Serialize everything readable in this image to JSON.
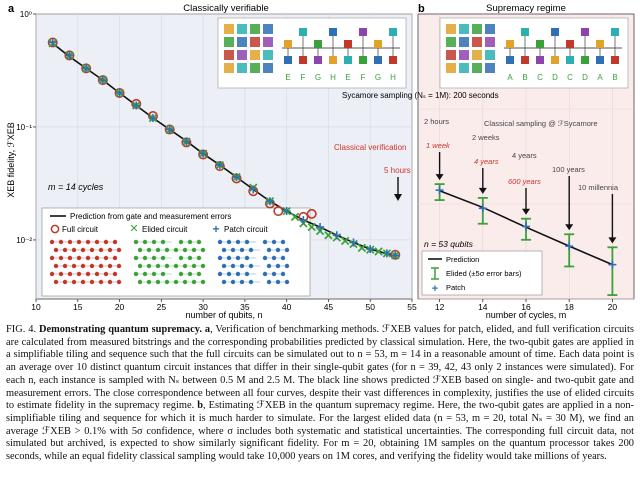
{
  "figure": {
    "panel_a": {
      "letter": "a",
      "title": "Classically verifiable",
      "m_label": "m = 14 cycles",
      "annotation_verification": "Classical verification",
      "annotation_5h": "5 hours",
      "qubit_labels": [
        "E",
        "F",
        "G",
        "H",
        "E",
        "F",
        "G",
        "H"
      ],
      "legend": {
        "prediction": "Prediction from gate and measurement errors",
        "full": "Full circuit",
        "elided": "Elided circuit",
        "patch": "Patch circuit"
      }
    },
    "panel_b": {
      "letter": "b",
      "title": "Supremacy regime",
      "sycamore_note": "Sycamore sampling (Nₛ = 1M): 200 seconds",
      "classical_sampling": "Classical sampling @ ℱSycamore",
      "n_label": "n = 53 qubits",
      "qubit_labels": [
        "A",
        "B",
        "C",
        "D",
        "C",
        "D",
        "A",
        "B"
      ],
      "time_labels": [
        "2 hours",
        "1 week",
        "2 weeks",
        "4 years",
        "4 years",
        "600 years",
        "100 years",
        "10 millennia"
      ],
      "legend": {
        "prediction": "Prediction",
        "elided": "Elided (±5σ error bars)",
        "patch": "Patch"
      }
    },
    "colors": {
      "panel_a_bg": "#eceff6",
      "panel_b_bg": "#fbecec",
      "full": "#c0392b",
      "elided": "#3aa13a",
      "patch": "#2f6fb3",
      "annotation_red": "#d0332b"
    }
  },
  "chart_data": [
    {
      "type": "scatter",
      "title": "Classically verifiable",
      "xlabel": "number of qubits, n",
      "ylabel": "XEB fidelity, ℱXEB",
      "xlim": [
        10,
        55
      ],
      "ylim": [
        0.003,
        1
      ],
      "yscale": "log",
      "x_ticks": [
        10,
        15,
        20,
        25,
        30,
        35,
        40,
        45,
        50,
        55
      ],
      "y_ticks_labels": [
        "10⁻²",
        "10⁻¹",
        "10⁰"
      ],
      "series": [
        {
          "name": "Prediction from gate and measurement errors",
          "kind": "line",
          "x": [
            12,
            14,
            16,
            18,
            20,
            22,
            24,
            26,
            28,
            30,
            32,
            34,
            36,
            38,
            40,
            42,
            44,
            46,
            48,
            50,
            53
          ],
          "y": [
            0.55,
            0.42,
            0.33,
            0.26,
            0.2,
            0.155,
            0.12,
            0.095,
            0.075,
            0.058,
            0.046,
            0.036,
            0.028,
            0.022,
            0.018,
            0.015,
            0.013,
            0.011,
            0.0095,
            0.0083,
            0.0072
          ]
        },
        {
          "name": "Full circuit",
          "x": [
            12,
            14,
            16,
            18,
            20,
            22,
            24,
            26,
            28,
            30,
            32,
            34,
            36,
            38,
            39,
            42,
            43,
            53
          ],
          "y": [
            0.56,
            0.43,
            0.33,
            0.26,
            0.2,
            0.16,
            0.125,
            0.095,
            0.073,
            0.057,
            0.045,
            0.035,
            0.027,
            0.021,
            0.018,
            0.016,
            0.017,
            0.0074
          ]
        },
        {
          "name": "Elided circuit",
          "x": [
            12,
            14,
            16,
            18,
            20,
            22,
            24,
            26,
            28,
            30,
            32,
            34,
            36,
            38,
            40,
            41,
            42,
            43,
            44,
            45,
            46,
            47,
            48,
            49,
            50,
            51,
            52,
            53
          ],
          "y": [
            0.55,
            0.43,
            0.33,
            0.26,
            0.2,
            0.155,
            0.12,
            0.094,
            0.074,
            0.058,
            0.046,
            0.036,
            0.029,
            0.022,
            0.018,
            0.016,
            0.014,
            0.013,
            0.012,
            0.011,
            0.0105,
            0.0098,
            0.0092,
            0.0085,
            0.0082,
            0.0079,
            0.0076,
            0.0073
          ]
        },
        {
          "name": "Patch circuit",
          "x": [
            12,
            14,
            16,
            18,
            20,
            22,
            24,
            26,
            28,
            30,
            32,
            34,
            36,
            38,
            40,
            42,
            44,
            46,
            48,
            50,
            52,
            53
          ],
          "y": [
            0.56,
            0.43,
            0.33,
            0.26,
            0.2,
            0.155,
            0.12,
            0.095,
            0.074,
            0.058,
            0.046,
            0.036,
            0.028,
            0.022,
            0.018,
            0.015,
            0.013,
            0.011,
            0.0095,
            0.0083,
            0.0076,
            0.0073
          ]
        }
      ]
    },
    {
      "type": "scatter",
      "title": "Supremacy regime",
      "xlabel": "number of cycles, m",
      "xlim": [
        11,
        21
      ],
      "ylim": [
        0.001,
        1
      ],
      "yscale": "log",
      "x_ticks": [
        12,
        14,
        16,
        18,
        20
      ],
      "series": [
        {
          "name": "Prediction",
          "kind": "line",
          "x": [
            12,
            14,
            16,
            18,
            20
          ],
          "y": [
            0.0138,
            0.0092,
            0.0057,
            0.0036,
            0.0023
          ]
        },
        {
          "name": "Elided (±5σ error bars)",
          "x": [
            12,
            14,
            16,
            18,
            20
          ],
          "y": [
            0.0135,
            0.0088,
            0.0056,
            0.0035,
            0.0023
          ],
          "err_low": [
            0.011,
            0.0062,
            0.0042,
            0.0022,
            0.0011
          ],
          "err_high": [
            0.0162,
            0.0116,
            0.007,
            0.0048,
            0.0035
          ]
        },
        {
          "name": "Patch",
          "x": [
            12,
            14,
            16,
            18,
            20
          ],
          "y": [
            0.014,
            0.009,
            0.0058,
            0.0036,
            0.0023
          ]
        }
      ]
    }
  ],
  "caption": {
    "lead": "FIG. 4.",
    "bold": "Demonstrating quantum supremacy.",
    "a_label": "a",
    "a_text": ", Verification of benchmarking methods. ℱXEB values for patch, elided, and full verification circuits are calculated from measured bitstrings and the corresponding probabilities predicted by classical simulation. Here, the two-qubit gates are applied in a simplifiable tiling and sequence such that the full circuits can be simulated out to n = 53, m = 14 in a reasonable amount of time. Each data point is an average over 10 distinct quantum circuit instances that differ in their single-qubit gates (for n = 39, 42, 43 only 2 instances were simulated). For each n, each instance is sampled with Nₛ between 0.5 M and 2.5 M. The black line shows predicted ℱXEB based on single- and two-qubit gate and measurement errors. The close correspondence between all four curves, despite their vast differences in complexity, justifies the use of elided circuits to estimate fidelity in the supremacy regime. ",
    "b_label": "b",
    "b_text": ", Estimating ℱXEB in the quantum supremacy regime. Here, the two-qubit gates are applied in a non-simplifiable tiling and sequence for which it is much harder to simulate. For the largest elided data (n = 53, m = 20, total Nₛ = 30 M), we find an average ℱXEB > 0.1% with 5σ confidence, where σ includes both systematic and statistical uncertainties. The corresponding full circuit data, not simulated but archived, is expected to show similarly significant fidelity. For m = 20, obtaining 1M samples on the quantum processor takes 200 seconds, while an equal fidelity classical sampling would take 10,000 years on 1M cores, and verifying the fidelity would take millions of years."
  }
}
